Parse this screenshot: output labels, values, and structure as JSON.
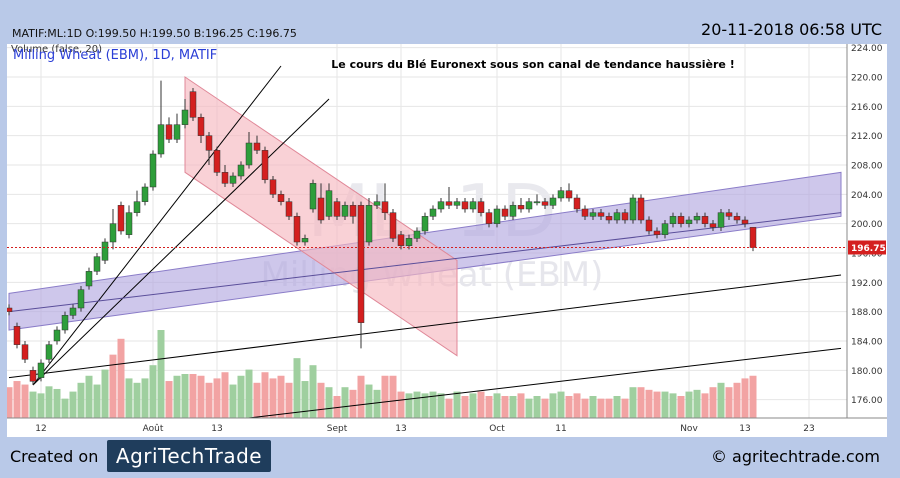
{
  "header": {
    "ohlc": "MATIF:ML:1D O:199.50 H:199.50 B:196.25 C:196.75",
    "timestamp": "20-11-2018 06:58 UTC"
  },
  "footer": {
    "created_label": "Created on",
    "logo_text": "Agr⁠i⁠TechTrade",
    "site": "© agritechtrade.com"
  },
  "chart_data": {
    "type": "candlestick",
    "symbol_label": "Milling Wheat (EBM), 1D, MATIF",
    "volume_label": "Volume (false, 20)",
    "annotation": "Le cours du Blé Euronext sous son canal de tendance haussière !",
    "watermark_symbol": "ML, 1D",
    "watermark_name": "Milling Wheat (EBM)",
    "last_price": 196.75,
    "last_price_label": "196.75",
    "ylim": [
      173.5,
      224.5
    ],
    "y_ticks": [
      "176.00",
      "180.00",
      "184.00",
      "188.00",
      "192.00",
      "196.00",
      "200.00",
      "204.00",
      "208.00",
      "212.00",
      "216.00",
      "220.00",
      "224.00"
    ],
    "x_ticks": [
      {
        "label": "12",
        "i": 4
      },
      {
        "label": "Août",
        "i": 18
      },
      {
        "label": "13",
        "i": 26
      },
      {
        "label": "Sept",
        "i": 41
      },
      {
        "label": "13",
        "i": 49
      },
      {
        "label": "Oct",
        "i": 61
      },
      {
        "label": "11",
        "i": 69
      },
      {
        "label": "Nov",
        "i": 85
      },
      {
        "label": "13",
        "i": 92
      },
      {
        "label": "23",
        "i": 100
      }
    ],
    "candles": [
      [
        188.5,
        188.0,
        189.0,
        187.5
      ],
      [
        186.0,
        183.5,
        186.5,
        183.0
      ],
      [
        183.5,
        181.5,
        184.0,
        181.0
      ],
      [
        180.0,
        178.5,
        180.5,
        178.0
      ],
      [
        179.0,
        181.0,
        181.5,
        178.5
      ],
      [
        181.5,
        183.5,
        184.0,
        181.0
      ],
      [
        184.0,
        185.5,
        186.0,
        183.5
      ],
      [
        185.5,
        187.5,
        188.0,
        185.0
      ],
      [
        187.5,
        188.5,
        189.0,
        187.0
      ],
      [
        188.5,
        191.0,
        191.5,
        188.0
      ],
      [
        191.5,
        193.5,
        194.0,
        191.0
      ],
      [
        193.5,
        195.5,
        196.0,
        193.0
      ],
      [
        195.0,
        197.5,
        198.0,
        194.5
      ],
      [
        197.5,
        200.0,
        202.0,
        196.5
      ],
      [
        202.5,
        199.0,
        203.0,
        198.5
      ],
      [
        198.5,
        201.5,
        202.5,
        198.0
      ],
      [
        201.5,
        203.0,
        204.5,
        201.0
      ],
      [
        203.0,
        205.0,
        205.5,
        202.5
      ],
      [
        205.0,
        209.5,
        210.0,
        204.5
      ],
      [
        209.5,
        213.5,
        219.5,
        209.0
      ],
      [
        213.5,
        211.5,
        214.5,
        211.0
      ],
      [
        211.5,
        213.5,
        215.0,
        211.0
      ],
      [
        213.5,
        215.5,
        217.0,
        213.0
      ],
      [
        218.0,
        214.5,
        218.5,
        214.0
      ],
      [
        214.5,
        212.0,
        215.0,
        211.0
      ],
      [
        212.0,
        210.0,
        212.5,
        208.0
      ],
      [
        210.0,
        207.0,
        210.5,
        206.5
      ],
      [
        207.0,
        205.5,
        208.0,
        205.0
      ],
      [
        205.5,
        206.5,
        207.0,
        205.0
      ],
      [
        206.5,
        208.0,
        208.5,
        206.0
      ],
      [
        208.0,
        211.0,
        212.5,
        207.5
      ],
      [
        211.0,
        210.0,
        212.0,
        209.5
      ],
      [
        210.0,
        206.0,
        210.5,
        205.5
      ],
      [
        206.0,
        204.0,
        206.5,
        203.5
      ],
      [
        204.0,
        203.0,
        204.5,
        202.5
      ],
      [
        203.0,
        201.0,
        203.5,
        200.5
      ],
      [
        201.0,
        197.5,
        201.5,
        197.0
      ],
      [
        197.5,
        198.0,
        198.5,
        197.0
      ],
      [
        202.0,
        205.5,
        206.0,
        201.5
      ],
      [
        203.5,
        200.5,
        205.5,
        200.0
      ],
      [
        201.0,
        204.5,
        205.5,
        200.5
      ],
      [
        203.0,
        201.0,
        203.5,
        200.5
      ],
      [
        201.0,
        202.5,
        203.0,
        200.5
      ],
      [
        202.5,
        201.0,
        203.0,
        200.0
      ],
      [
        202.5,
        186.5,
        203.0,
        183.0
      ],
      [
        197.5,
        202.5,
        203.5,
        197.0
      ],
      [
        202.5,
        203.0,
        204.0,
        202.0
      ],
      [
        203.0,
        201.5,
        205.5,
        200.5
      ],
      [
        201.5,
        198.0,
        202.0,
        197.5
      ],
      [
        198.5,
        197.0,
        199.0,
        196.5
      ],
      [
        197.0,
        198.0,
        198.5,
        196.5
      ],
      [
        198.0,
        199.0,
        199.5,
        197.5
      ],
      [
        199.0,
        201.0,
        201.5,
        198.5
      ],
      [
        201.0,
        202.0,
        202.5,
        200.5
      ],
      [
        202.0,
        203.0,
        203.5,
        201.5
      ],
      [
        203.0,
        202.5,
        205.0,
        202.0
      ],
      [
        202.5,
        203.0,
        203.5,
        202.0
      ],
      [
        203.0,
        202.0,
        203.5,
        201.5
      ],
      [
        202.0,
        203.0,
        203.5,
        201.5
      ],
      [
        203.0,
        201.5,
        203.5,
        201.0
      ],
      [
        201.5,
        200.0,
        202.0,
        199.5
      ],
      [
        200.0,
        202.0,
        202.5,
        199.5
      ],
      [
        202.0,
        201.0,
        202.5,
        200.5
      ],
      [
        201.0,
        202.5,
        203.0,
        200.5
      ],
      [
        202.5,
        202.0,
        203.5,
        201.5
      ],
      [
        202.0,
        203.0,
        203.5,
        201.5
      ],
      [
        203.0,
        203.0,
        204.0,
        202.5
      ],
      [
        203.0,
        202.5,
        203.5,
        202.0
      ],
      [
        202.5,
        203.5,
        204.0,
        202.0
      ],
      [
        203.5,
        204.5,
        205.0,
        203.0
      ],
      [
        204.5,
        203.5,
        205.5,
        203.0
      ],
      [
        203.5,
        202.0,
        204.0,
        201.5
      ],
      [
        202.0,
        201.0,
        202.5,
        200.5
      ],
      [
        201.0,
        201.5,
        202.0,
        200.5
      ],
      [
        201.5,
        201.0,
        202.0,
        200.5
      ],
      [
        201.0,
        200.5,
        201.5,
        200.0
      ],
      [
        200.5,
        201.5,
        202.0,
        200.0
      ],
      [
        201.5,
        200.5,
        202.0,
        200.0
      ],
      [
        200.5,
        203.5,
        204.0,
        200.0
      ],
      [
        203.5,
        200.5,
        204.0,
        200.0
      ],
      [
        200.5,
        199.0,
        201.0,
        198.5
      ],
      [
        199.0,
        198.5,
        199.5,
        198.0
      ],
      [
        198.5,
        200.0,
        200.5,
        198.0
      ],
      [
        200.0,
        201.0,
        201.5,
        199.5
      ],
      [
        201.0,
        200.0,
        201.5,
        199.5
      ],
      [
        200.0,
        200.5,
        201.0,
        199.5
      ],
      [
        200.5,
        201.0,
        201.5,
        200.0
      ],
      [
        201.0,
        200.0,
        201.5,
        199.5
      ],
      [
        200.0,
        199.5,
        200.5,
        199.0
      ],
      [
        199.5,
        201.5,
        202.0,
        199.0
      ],
      [
        201.5,
        201.0,
        202.0,
        200.5
      ],
      [
        201.0,
        200.5,
        201.5,
        200.0
      ],
      [
        200.5,
        200.0,
        201.0,
        199.5
      ],
      [
        199.5,
        196.75,
        199.5,
        196.25
      ]
    ],
    "volume": [
      {
        "v": 0.35,
        "up": false
      },
      {
        "v": 0.42,
        "up": false
      },
      {
        "v": 0.38,
        "up": false
      },
      {
        "v": 0.3,
        "up": true
      },
      {
        "v": 0.28,
        "up": true
      },
      {
        "v": 0.36,
        "up": true
      },
      {
        "v": 0.33,
        "up": true
      },
      {
        "v": 0.22,
        "up": true
      },
      {
        "v": 0.3,
        "up": true
      },
      {
        "v": 0.4,
        "up": true
      },
      {
        "v": 0.48,
        "up": true
      },
      {
        "v": 0.38,
        "up": true
      },
      {
        "v": 0.55,
        "up": true
      },
      {
        "v": 0.72,
        "up": false
      },
      {
        "v": 0.9,
        "up": false
      },
      {
        "v": 0.45,
        "up": true
      },
      {
        "v": 0.4,
        "up": true
      },
      {
        "v": 0.45,
        "up": true
      },
      {
        "v": 0.6,
        "up": true
      },
      {
        "v": 1.0,
        "up": true
      },
      {
        "v": 0.42,
        "up": false
      },
      {
        "v": 0.48,
        "up": true
      },
      {
        "v": 0.5,
        "up": true
      },
      {
        "v": 0.5,
        "up": false
      },
      {
        "v": 0.48,
        "up": false
      },
      {
        "v": 0.4,
        "up": false
      },
      {
        "v": 0.45,
        "up": false
      },
      {
        "v": 0.52,
        "up": false
      },
      {
        "v": 0.38,
        "up": true
      },
      {
        "v": 0.48,
        "up": true
      },
      {
        "v": 0.55,
        "up": true
      },
      {
        "v": 0.4,
        "up": false
      },
      {
        "v": 0.52,
        "up": false
      },
      {
        "v": 0.45,
        "up": false
      },
      {
        "v": 0.48,
        "up": false
      },
      {
        "v": 0.4,
        "up": false
      },
      {
        "v": 0.68,
        "up": true
      },
      {
        "v": 0.42,
        "up": true
      },
      {
        "v": 0.6,
        "up": true
      },
      {
        "v": 0.4,
        "up": false
      },
      {
        "v": 0.35,
        "up": true
      },
      {
        "v": 0.25,
        "up": false
      },
      {
        "v": 0.35,
        "up": true
      },
      {
        "v": 0.32,
        "up": false
      },
      {
        "v": 0.48,
        "up": false
      },
      {
        "v": 0.38,
        "up": true
      },
      {
        "v": 0.32,
        "up": true
      },
      {
        "v": 0.48,
        "up": false
      },
      {
        "v": 0.48,
        "up": false
      },
      {
        "v": 0.3,
        "up": false
      },
      {
        "v": 0.28,
        "up": true
      },
      {
        "v": 0.3,
        "up": true
      },
      {
        "v": 0.28,
        "up": true
      },
      {
        "v": 0.3,
        "up": true
      },
      {
        "v": 0.28,
        "up": true
      },
      {
        "v": 0.22,
        "up": false
      },
      {
        "v": 0.3,
        "up": true
      },
      {
        "v": 0.25,
        "up": false
      },
      {
        "v": 0.28,
        "up": true
      },
      {
        "v": 0.3,
        "up": false
      },
      {
        "v": 0.25,
        "up": false
      },
      {
        "v": 0.28,
        "up": true
      },
      {
        "v": 0.25,
        "up": false
      },
      {
        "v": 0.25,
        "up": true
      },
      {
        "v": 0.28,
        "up": false
      },
      {
        "v": 0.22,
        "up": true
      },
      {
        "v": 0.25,
        "up": true
      },
      {
        "v": 0.22,
        "up": false
      },
      {
        "v": 0.28,
        "up": true
      },
      {
        "v": 0.3,
        "up": true
      },
      {
        "v": 0.25,
        "up": false
      },
      {
        "v": 0.28,
        "up": false
      },
      {
        "v": 0.22,
        "up": false
      },
      {
        "v": 0.25,
        "up": true
      },
      {
        "v": 0.22,
        "up": false
      },
      {
        "v": 0.22,
        "up": false
      },
      {
        "v": 0.25,
        "up": true
      },
      {
        "v": 0.22,
        "up": false
      },
      {
        "v": 0.35,
        "up": true
      },
      {
        "v": 0.35,
        "up": false
      },
      {
        "v": 0.32,
        "up": false
      },
      {
        "v": 0.3,
        "up": false
      },
      {
        "v": 0.3,
        "up": true
      },
      {
        "v": 0.28,
        "up": true
      },
      {
        "v": 0.25,
        "up": false
      },
      {
        "v": 0.3,
        "up": true
      },
      {
        "v": 0.32,
        "up": true
      },
      {
        "v": 0.28,
        "up": false
      },
      {
        "v": 0.35,
        "up": false
      },
      {
        "v": 0.4,
        "up": true
      },
      {
        "v": 0.35,
        "up": false
      },
      {
        "v": 0.4,
        "up": false
      },
      {
        "v": 0.45,
        "up": false
      },
      {
        "v": 0.48,
        "up": false
      }
    ],
    "trendlines": [
      {
        "from": [
          3,
          178.0
        ],
        "to": [
          34,
          221.5
        ],
        "color": "#000000"
      },
      {
        "from": [
          3,
          178.0
        ],
        "to": [
          40,
          217.0
        ],
        "color": "#000000"
      },
      {
        "from": [
          0,
          179.0
        ],
        "to": [
          104,
          193.0
        ],
        "color": "#000000"
      },
      {
        "from": [
          26,
          173.0
        ],
        "to": [
          104,
          183.0
        ],
        "color": "#000000"
      },
      {
        "from": [
          0,
          188.0
        ],
        "to": [
          104,
          201.5
        ],
        "color": "#5a4e9a"
      }
    ],
    "channels": [
      {
        "lower": [
          [
            0,
            185.5
          ],
          [
            104,
            201.0
          ]
        ],
        "upper": [
          [
            0,
            190.5
          ],
          [
            104,
            207.0
          ]
        ],
        "fill": "#b3a9e0",
        "stroke": "#8a7cc8"
      },
      {
        "upper": [
          [
            22,
            220.0
          ],
          [
            56,
            195.0
          ]
        ],
        "lower": [
          [
            22,
            207.0
          ],
          [
            56,
            182.0
          ]
        ],
        "fill": "#f6b8c0",
        "stroke": "#e08898"
      }
    ],
    "colors": {
      "up": "#2e9e3a",
      "down": "#d41f1f",
      "vol_up": "#9fcf9f",
      "vol_down": "#f2a3a3",
      "grid": "#e6e6e6",
      "price_line": "#d41f1f"
    }
  }
}
